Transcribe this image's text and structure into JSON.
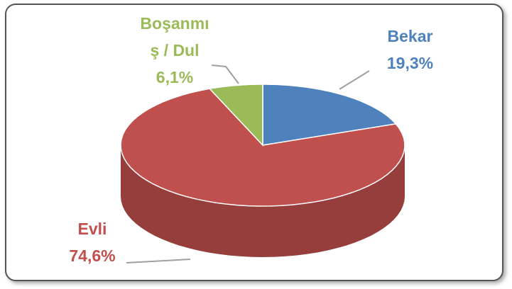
{
  "chart_data": {
    "type": "pie",
    "categories": [
      "Bekar",
      "Evli",
      "Boşanmış / Dul"
    ],
    "values": [
      19.3,
      74.6,
      6.1
    ],
    "value_labels": [
      "19,3%",
      "74,6%",
      "6,1%"
    ],
    "colors": [
      "#4f81bd",
      "#c0504d",
      "#9bbb59"
    ]
  }
}
